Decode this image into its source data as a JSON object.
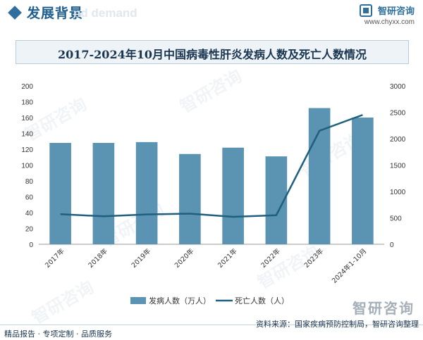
{
  "header": {
    "title": "发展背景",
    "ghost_text": "nd demand",
    "brand_name": "智研咨询",
    "brand_url": "www.chyxx.com"
  },
  "watermark_text": "智研咨询",
  "chart_data": {
    "type": "bar",
    "title": "2017-2024年10月中国病毒性肝炎发病人数及死亡人数情况",
    "categories": [
      "2017年",
      "2018年",
      "2019年",
      "2020年",
      "2021年",
      "2022年",
      "2023年",
      "2024年1-10月"
    ],
    "series": [
      {
        "name": "发病人数（万人）",
        "type": "bar",
        "axis": "left",
        "color": "#5b93b2",
        "values": [
          128,
          128,
          129,
          114,
          122,
          111,
          172,
          160
        ]
      },
      {
        "name": "死亡人数（人）",
        "type": "line",
        "axis": "right",
        "color": "#1f5f80",
        "values": [
          570,
          530,
          565,
          580,
          520,
          550,
          2150,
          2450
        ]
      }
    ],
    "ylim_left": [
      0,
      200
    ],
    "yticks_left": [
      0,
      20,
      40,
      60,
      80,
      100,
      120,
      140,
      160,
      180,
      200
    ],
    "ylim_right": [
      0,
      3000
    ],
    "yticks_right": [
      0,
      500,
      1000,
      1500,
      2000,
      2500,
      3000
    ],
    "legend_position": "bottom",
    "grid": false
  },
  "footer": {
    "left": "精品报告 · 专项定制 · 品质服务",
    "source": "资料来源：国家疾病预防控制局，智研咨询整理",
    "logo_text": "智研咨询"
  }
}
